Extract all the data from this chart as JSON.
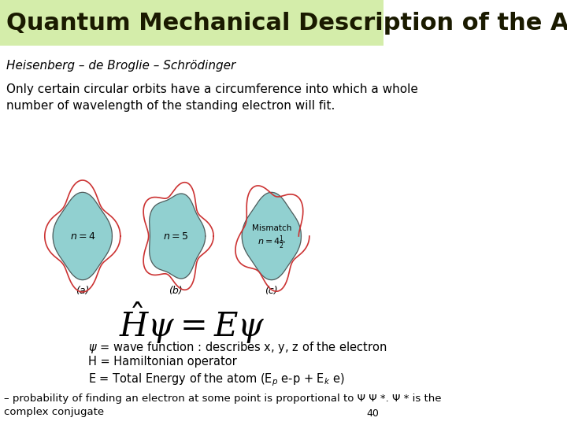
{
  "title": "Quantum Mechanical Description of the Atom",
  "title_bg": "#d4edaa",
  "title_color": "#1a1a00",
  "subtitle": "Heisenberg – de Broglie – Schrödinger",
  "body_text1": "Only certain circular orbits have a circumference into which a whole\nnumber of wavelength of the standing electron will fit.",
  "bullet1": "$\\psi$ = wave function : describes x, y, z of the electron",
  "bullet2": "H = Hamiltonian operator",
  "bullet3": "E = Total Energy of the atom (E$_p$ e-p + E$_k$ e)",
  "footer": "– probability of finding an electron at some point is proportional to Ψ Ψ *. Ψ * is the\ncomplex conjugate",
  "page_num": "40",
  "teal_fill": "#7ec8c8",
  "red_wave": "#cc3333",
  "dark_outline": "#555555",
  "bg_color": "#ffffff"
}
